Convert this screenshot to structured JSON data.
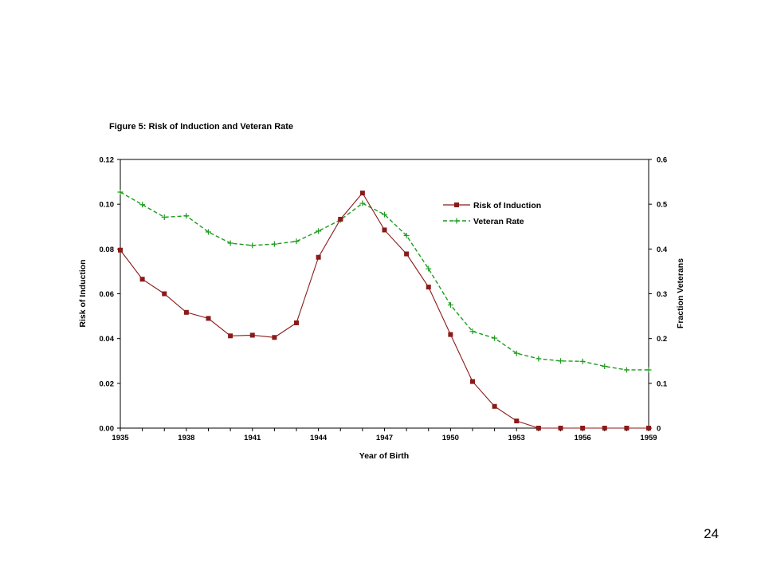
{
  "page": {
    "number": "24"
  },
  "chart_data": {
    "type": "line",
    "title": "Figure 5: Risk of Induction and Veteran Rate",
    "xlabel": "Year of Birth",
    "ylabel_left": "Risk of Induction",
    "ylabel_right": "Fraction Veterans",
    "xlim": [
      1935,
      1959
    ],
    "ylim_left": [
      0,
      0.12
    ],
    "ylim_right": [
      0,
      0.6
    ],
    "x_tick_labels": [
      "1935",
      "1938",
      "1941",
      "1944",
      "1947",
      "1950",
      "1953",
      "1956",
      "1959"
    ],
    "y_left_tick_labels": [
      "0.00",
      "0.02",
      "0.04",
      "0.06",
      "0.08",
      "0.10",
      "0.12"
    ],
    "y_right_tick_labels": [
      "0",
      "0.1",
      "0.2",
      "0.3",
      "0.4",
      "0.5",
      "0.6"
    ],
    "grid": false,
    "legend_position": "top-right",
    "x": [
      1935,
      1936,
      1937,
      1938,
      1939,
      1940,
      1941,
      1942,
      1943,
      1944,
      1945,
      1946,
      1947,
      1948,
      1949,
      1950,
      1951,
      1952,
      1953,
      1954,
      1955,
      1956,
      1957,
      1958,
      1959
    ],
    "series": [
      {
        "name": "Risk of Induction",
        "axis": "left",
        "color": "#8b1a1a",
        "marker": "square",
        "line_style": "solid",
        "values": [
          0.0795,
          0.0665,
          0.06,
          0.0517,
          0.049,
          0.0412,
          0.0415,
          0.0405,
          0.047,
          0.0763,
          0.0933,
          0.105,
          0.0885,
          0.0778,
          0.063,
          0.0418,
          0.0208,
          0.0097,
          0.0032,
          0.0,
          0.0,
          0.0,
          0.0,
          0.0,
          0.0
        ]
      },
      {
        "name": "Veteran Rate",
        "axis": "right",
        "color": "#1f9a1f",
        "marker": "plus",
        "line_style": "dashed",
        "values": [
          0.527,
          0.499,
          0.471,
          0.474,
          0.438,
          0.413,
          0.408,
          0.411,
          0.417,
          0.44,
          0.465,
          0.502,
          0.477,
          0.43,
          0.356,
          0.275,
          0.216,
          0.201,
          0.167,
          0.155,
          0.15,
          0.149,
          0.138,
          0.13,
          0.13
        ]
      }
    ]
  }
}
